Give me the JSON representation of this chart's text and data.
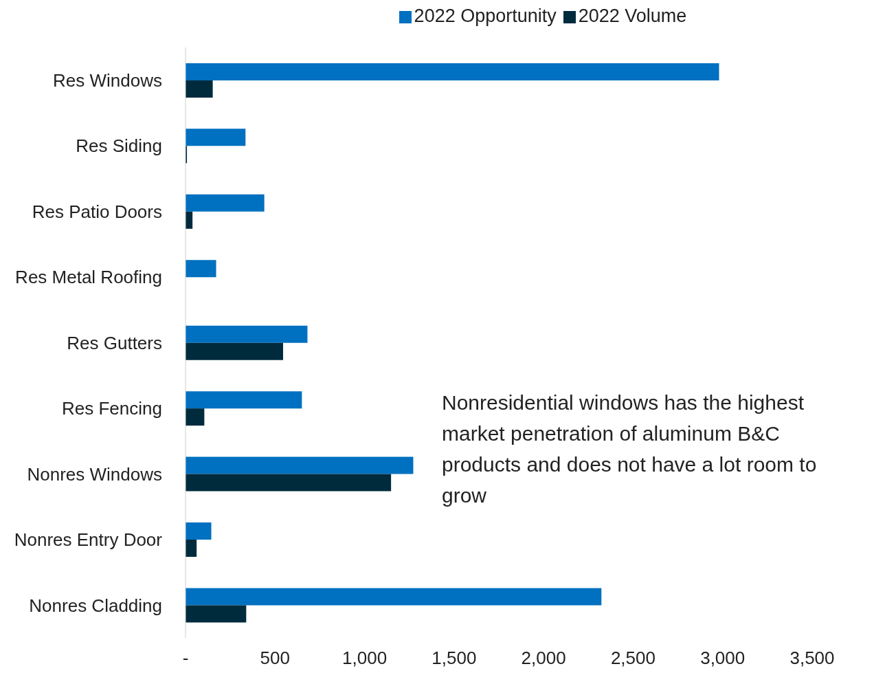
{
  "chart_data": {
    "type": "bar",
    "orientation": "horizontal",
    "categories": [
      "Res Windows",
      "Res Siding",
      "Res Patio Doors",
      "Res Metal Roofing",
      "Res Gutters",
      "Res Fencing",
      "Nonres Windows",
      "Nonres Entry Door",
      "Nonres Cladding"
    ],
    "series": [
      {
        "name": "2022 Opportunity",
        "color": "#0070c0",
        "values": [
          2980,
          335,
          440,
          171,
          681,
          650,
          1272,
          144,
          2323
        ]
      },
      {
        "name": "2022 Volume",
        "color": "#002b3d",
        "values": [
          152,
          8,
          39,
          null,
          545,
          105,
          1148,
          62,
          339
        ]
      }
    ],
    "xlim": [
      0,
      3500
    ],
    "xticks": [
      {
        "value": 0,
        "label": "-"
      },
      500,
      {
        "value": 1000,
        "label": "1,000"
      },
      {
        "value": 1500,
        "label": "1,500"
      },
      {
        "value": 2000,
        "label": "2,000"
      },
      {
        "value": 2500,
        "label": "2,500"
      },
      {
        "value": 3000,
        "label": "3,000"
      },
      {
        "value": 3500,
        "label": "3,500"
      }
    ],
    "grid": false,
    "legend": "top",
    "annotations": [
      "Nonresidential windows has the highest market penetration of aluminum B&C products and does not have a lot room to grow"
    ]
  }
}
